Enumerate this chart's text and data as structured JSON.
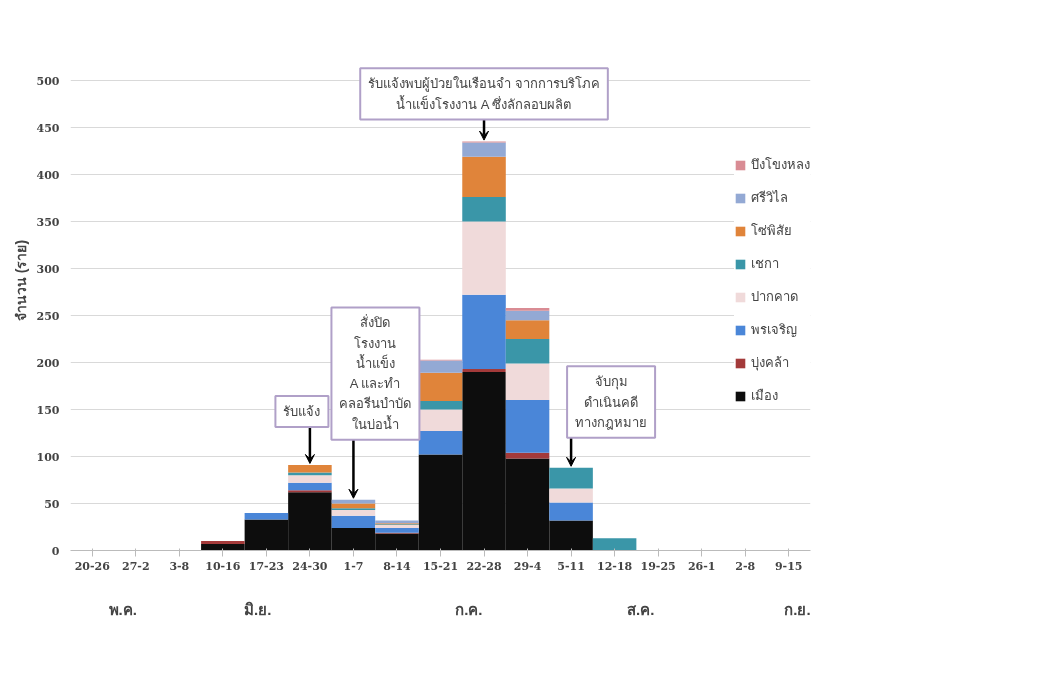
{
  "chart_data": {
    "type": "bar",
    "stacked": true,
    "ylabel": "จำนวน (ราย)",
    "categories": [
      "20-26",
      "27-2",
      "3-8",
      "10-16",
      "17-23",
      "24-30",
      "1-7",
      "8-14",
      "15-21",
      "22-28",
      "29-4",
      "5-11",
      "12-18",
      "19-25",
      "26-1",
      "2-8",
      "9-15"
    ],
    "series": [
      {
        "name": "เมือง",
        "color": "#0d0d0d",
        "values": [
          0,
          0,
          0,
          7,
          33,
          62,
          24,
          18,
          102,
          190,
          98,
          32,
          0,
          0,
          0,
          0,
          0
        ]
      },
      {
        "name": "บุ่งคล้า",
        "color": "#a33a3a",
        "values": [
          0,
          0,
          0,
          3,
          0,
          2,
          0,
          1,
          0,
          3,
          6,
          0,
          0,
          0,
          0,
          0,
          0
        ]
      },
      {
        "name": "พรเจริญ",
        "color": "#4a86d8",
        "values": [
          0,
          0,
          0,
          0,
          7,
          8,
          13,
          5,
          25,
          79,
          56,
          19,
          0,
          0,
          0,
          0,
          0
        ]
      },
      {
        "name": "ปากคาด",
        "color": "#f0dada",
        "values": [
          0,
          0,
          0,
          0,
          0,
          8,
          6,
          3,
          23,
          78,
          39,
          15,
          0,
          0,
          0,
          0,
          0
        ]
      },
      {
        "name": "เชกา",
        "color": "#3a96a8",
        "values": [
          0,
          0,
          0,
          0,
          0,
          3,
          2,
          1,
          9,
          26,
          26,
          22,
          13,
          0,
          0,
          0,
          0
        ]
      },
      {
        "name": "โซ่พิสัย",
        "color": "#e0843a",
        "values": [
          0,
          0,
          0,
          0,
          0,
          8,
          5,
          1,
          30,
          43,
          20,
          0,
          0,
          0,
          0,
          0,
          0
        ]
      },
      {
        "name": "ศรีวิไล",
        "color": "#93a9d4",
        "values": [
          0,
          0,
          0,
          0,
          0,
          0,
          4,
          3,
          13,
          15,
          10,
          0,
          0,
          0,
          0,
          0,
          0
        ]
      },
      {
        "name": "บึงโขงหลง",
        "color": "#d98c94",
        "values": [
          0,
          0,
          0,
          0,
          0,
          0,
          0,
          0,
          1,
          1,
          3,
          0,
          0,
          0,
          0,
          0,
          0
        ]
      }
    ],
    "ylim": [
      0,
      500
    ],
    "yticks": [
      0,
      50,
      100,
      150,
      200,
      250,
      300,
      350,
      400,
      450,
      500
    ],
    "grid": "y",
    "legend": "right",
    "annotations": [
      {
        "text": "รับแจ้ง",
        "x": "24-30",
        "y": 91
      },
      {
        "text": "สั่งปิด\nโรงงาน\nน้ำแข็ง\nA และทำ\nคลอรีนบำบัด\nในบ่อน้ำ",
        "x": "1-7",
        "y": 54
      },
      {
        "text": "รับแจ้งพบผู้ป่วยในเรือนจำ จากการบริโภค\nน้ำแข็งโรงงาน A ซึ่งลักลอบผลิต",
        "x": "22-28",
        "y": 435
      },
      {
        "text": "จับกุม\nดำเนินคดี\nทางกฎหมาย",
        "x": "5-11",
        "y": 88
      },
      "พ.ค.",
      "มิ.ย.",
      "ก.ค.",
      "ส.ค.",
      "ก.ย."
    ]
  }
}
